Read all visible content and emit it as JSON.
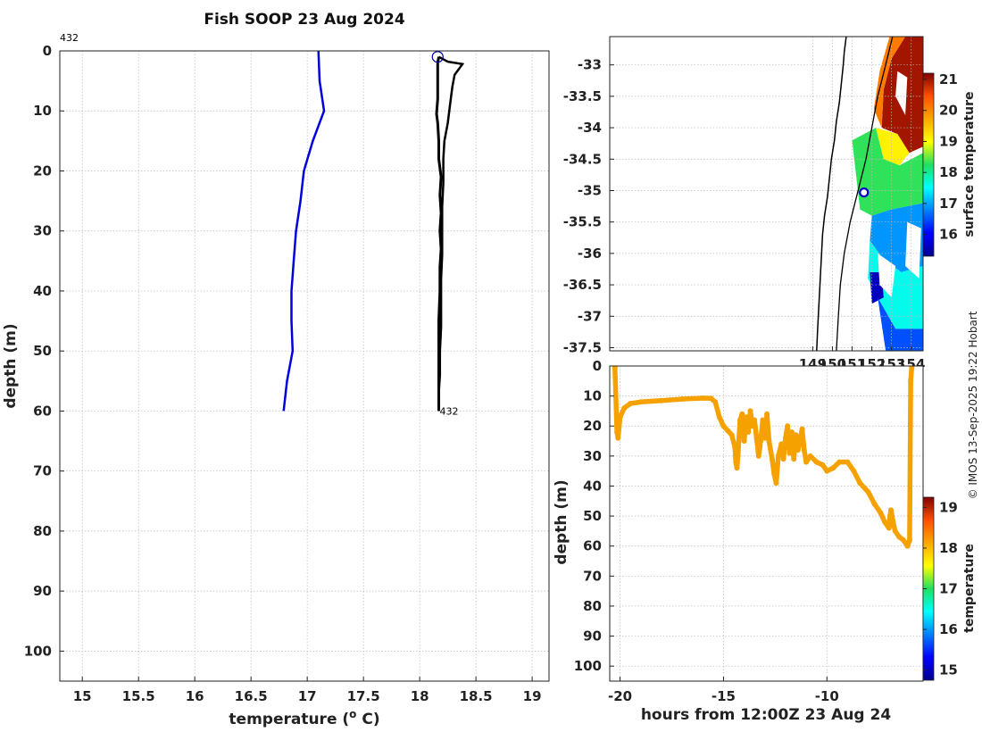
{
  "title": "Fish SOOP 23 Aug 2024",
  "credit": "© IMOS 13-Sep-2025 19:22 Hobart",
  "chart_data": [
    {
      "id": "profile",
      "type": "line",
      "xlabel": "temperature (o C)",
      "xlabel_main": "temperature (",
      "xlabel_sup": "o",
      "xlabel_end": " C)",
      "ylabel": "depth (m)",
      "xlim": [
        14.8,
        19.15
      ],
      "ylim": [
        105,
        0
      ],
      "xticks": [
        "15",
        "15.5",
        "16",
        "16.5",
        "17",
        "17.5",
        "18",
        "18.5",
        "19"
      ],
      "xtick_values": [
        15,
        15.5,
        16,
        16.5,
        17,
        17.5,
        18,
        18.5,
        19
      ],
      "yticks": [
        "0",
        "10",
        "20",
        "30",
        "40",
        "50",
        "60",
        "70",
        "80",
        "90",
        "100"
      ],
      "ytick_values": [
        0,
        10,
        20,
        30,
        40,
        50,
        60,
        70,
        80,
        90,
        100
      ],
      "annotation_top": "432",
      "annotation_bottom": "432",
      "series": [
        {
          "name": "climatology",
          "color": "#0000dd",
          "points": [
            [
              17.1,
              0
            ],
            [
              17.11,
              5
            ],
            [
              17.15,
              10
            ],
            [
              17.05,
              15
            ],
            [
              16.97,
              20
            ],
            [
              16.94,
              25
            ],
            [
              16.9,
              30
            ],
            [
              16.88,
              35
            ],
            [
              16.86,
              40
            ],
            [
              16.86,
              45
            ],
            [
              16.87,
              50
            ],
            [
              16.82,
              55
            ],
            [
              16.79,
              60
            ]
          ]
        },
        {
          "name": "downcast",
          "color": "#000000",
          "points": [
            [
              18.17,
              1
            ],
            [
              18.25,
              1.8
            ],
            [
              18.38,
              2.2
            ],
            [
              18.31,
              4
            ],
            [
              18.29,
              6
            ],
            [
              18.27,
              9
            ],
            [
              18.25,
              12
            ],
            [
              18.22,
              15
            ],
            [
              18.21,
              18
            ],
            [
              18.21,
              22
            ],
            [
              18.2,
              26
            ],
            [
              18.2,
              30
            ],
            [
              18.2,
              34
            ],
            [
              18.19,
              38
            ],
            [
              18.19,
              42
            ],
            [
              18.19,
              46
            ],
            [
              18.18,
              50
            ],
            [
              18.18,
              54
            ],
            [
              18.17,
              57
            ],
            [
              18.17,
              60
            ]
          ]
        },
        {
          "name": "upcast",
          "color": "#000000",
          "points": [
            [
              18.17,
              60
            ],
            [
              18.17,
              55
            ],
            [
              18.17,
              50
            ],
            [
              18.17,
              45
            ],
            [
              18.18,
              40
            ],
            [
              18.18,
              36
            ],
            [
              18.19,
              33
            ],
            [
              18.18,
              30
            ],
            [
              18.19,
              27
            ],
            [
              18.18,
              24
            ],
            [
              18.19,
              21
            ],
            [
              18.17,
              18
            ],
            [
              18.17,
              15
            ],
            [
              18.16,
              12
            ],
            [
              18.15,
              10.5
            ],
            [
              18.16,
              8
            ],
            [
              18.16,
              5
            ],
            [
              18.16,
              2
            ],
            [
              18.17,
              1
            ]
          ]
        }
      ],
      "marker": {
        "x": 18.16,
        "y": 1,
        "color": "#0000aa"
      }
    },
    {
      "id": "map",
      "type": "heatmap",
      "xlim": [
        138.7,
        154.6
      ],
      "ylim": [
        -37.55,
        -32.55
      ],
      "xticks": [
        "149",
        "150",
        "151",
        "152",
        "153",
        "154"
      ],
      "xtick_values": [
        149,
        150,
        151,
        152,
        153,
        154
      ],
      "yticks": [
        "-33",
        "-33.5",
        "-34",
        "-34.5",
        "-35",
        "-35.5",
        "-36",
        "-36.5",
        "-37",
        "-37.5"
      ],
      "ytick_values": [
        -33,
        -33.5,
        -34,
        -34.5,
        -35,
        -35.5,
        -36,
        -36.5,
        -37,
        -37.5
      ],
      "colorbar_label": "surface temperature",
      "colorbar_ticks": [
        "16",
        "17",
        "18",
        "19",
        "20",
        "21"
      ],
      "colorbar_tick_values": [
        16,
        17,
        18,
        19,
        20,
        21
      ],
      "colorbar_range": [
        15.3,
        21.2
      ],
      "station": {
        "lon": 151.6,
        "lat": -35.03
      },
      "coastline": [
        [
          150.7,
          -32.55
        ],
        [
          150.6,
          -32.8
        ],
        [
          150.55,
          -33.0
        ],
        [
          150.45,
          -33.3
        ],
        [
          150.35,
          -33.6
        ],
        [
          150.2,
          -33.9
        ],
        [
          150.1,
          -34.2
        ],
        [
          149.95,
          -34.5
        ],
        [
          149.85,
          -34.8
        ],
        [
          149.75,
          -35.1
        ],
        [
          149.6,
          -35.4
        ],
        [
          149.5,
          -35.7
        ],
        [
          149.45,
          -36.0
        ],
        [
          149.4,
          -36.3
        ],
        [
          149.35,
          -36.6
        ],
        [
          149.3,
          -36.9
        ],
        [
          149.25,
          -37.2
        ],
        [
          149.2,
          -37.55
        ]
      ],
      "isobath": [
        [
          153.05,
          -32.55
        ],
        [
          152.7,
          -33.0
        ],
        [
          152.3,
          -33.5
        ],
        [
          152.0,
          -34.0
        ],
        [
          151.7,
          -34.5
        ],
        [
          151.3,
          -35.0
        ],
        [
          150.9,
          -35.5
        ],
        [
          150.6,
          -36.0
        ],
        [
          150.4,
          -36.5
        ],
        [
          150.3,
          -37.0
        ],
        [
          150.2,
          -37.55
        ]
      ],
      "sst_regions": [
        {
          "temp": 21.0,
          "poly": [
            [
              153.7,
              -32.55
            ],
            [
              154.6,
              -32.55
            ],
            [
              154.6,
              -34.3
            ],
            [
              153.9,
              -34.4
            ],
            [
              153.3,
              -34.1
            ],
            [
              152.5,
              -34.0
            ],
            [
              152.6,
              -33.4
            ],
            [
              153.0,
              -32.9
            ]
          ]
        },
        {
          "temp": 20.1,
          "poly": [
            [
              152.9,
              -32.55
            ],
            [
              153.7,
              -32.55
            ],
            [
              153.0,
              -32.9
            ],
            [
              152.6,
              -33.4
            ],
            [
              152.5,
              -34.0
            ],
            [
              152.1,
              -33.7
            ],
            [
              152.4,
              -33.1
            ]
          ]
        },
        {
          "temp": 19.1,
          "poly": [
            [
              152.2,
              -34.0
            ],
            [
              153.3,
              -34.1
            ],
            [
              153.9,
              -34.4
            ],
            [
              153.4,
              -34.6
            ],
            [
              152.6,
              -34.5
            ]
          ]
        },
        {
          "temp": 18.3,
          "poly": [
            [
              151.0,
              -34.2
            ],
            [
              152.2,
              -34.0
            ],
            [
              152.6,
              -34.5
            ],
            [
              153.4,
              -34.6
            ],
            [
              154.6,
              -34.4
            ],
            [
              154.6,
              -35.2
            ],
            [
              153.0,
              -35.3
            ],
            [
              152.0,
              -35.4
            ],
            [
              151.4,
              -35.3
            ]
          ]
        },
        {
          "temp": 16.9,
          "poly": [
            [
              152.0,
              -35.4
            ],
            [
              153.0,
              -35.3
            ],
            [
              154.6,
              -35.2
            ],
            [
              154.6,
              -36.2
            ],
            [
              153.5,
              -36.3
            ],
            [
              152.6,
              -36.1
            ],
            [
              151.9,
              -35.8
            ]
          ]
        },
        {
          "temp": 17.6,
          "poly": [
            [
              151.9,
              -35.8
            ],
            [
              152.6,
              -36.1
            ],
            [
              153.5,
              -36.3
            ],
            [
              154.6,
              -36.2
            ],
            [
              154.6,
              -37.2
            ],
            [
              153.2,
              -37.2
            ],
            [
              152.3,
              -36.7
            ],
            [
              151.8,
              -36.4
            ]
          ]
        },
        {
          "temp": 15.6,
          "poly": [
            [
              151.9,
              -36.3
            ],
            [
              152.5,
              -36.3
            ],
            [
              152.6,
              -36.7
            ],
            [
              152.0,
              -36.8
            ]
          ]
        },
        {
          "temp": 16.5,
          "poly": [
            [
              152.3,
              -36.7
            ],
            [
              153.2,
              -37.2
            ],
            [
              154.6,
              -37.2
            ],
            [
              154.6,
              -37.55
            ],
            [
              152.7,
              -37.55
            ]
          ]
        }
      ],
      "gaps": [
        {
          "poly": [
            [
              153.3,
              -33.1
            ],
            [
              153.8,
              -33.2
            ],
            [
              153.7,
              -33.8
            ],
            [
              153.2,
              -33.5
            ]
          ]
        },
        {
          "poly": [
            [
              152.3,
              -36.0
            ],
            [
              153.2,
              -36.2
            ],
            [
              153.0,
              -36.7
            ],
            [
              152.4,
              -36.5
            ]
          ]
        },
        {
          "poly": [
            [
              153.8,
              -35.5
            ],
            [
              154.5,
              -35.6
            ],
            [
              154.4,
              -36.4
            ],
            [
              153.7,
              -36.2
            ]
          ]
        }
      ]
    },
    {
      "id": "depth-time",
      "type": "scatter",
      "xlabel": "hours from 12:00Z 23 Aug 24",
      "ylabel": "depth (m)",
      "xlim": [
        -20.5,
        -5.35
      ],
      "ylim": [
        105,
        0
      ],
      "xticks": [
        "-20",
        "-15",
        "-10"
      ],
      "xtick_values": [
        -20,
        -15,
        -10
      ],
      "yticks": [
        "0",
        "10",
        "20",
        "30",
        "40",
        "50",
        "60",
        "70",
        "80",
        "90",
        "100"
      ],
      "ytick_values": [
        0,
        10,
        20,
        30,
        40,
        50,
        60,
        70,
        80,
        90,
        100
      ],
      "colorbar_label": "temperature",
      "colorbar_ticks": [
        "15",
        "16",
        "17",
        "18",
        "19"
      ],
      "colorbar_tick_values": [
        15,
        16,
        17,
        18,
        19
      ],
      "colorbar_range": [
        14.75,
        19.25
      ],
      "point_color": "#f5a100",
      "track": [
        [
          -20.25,
          0.5
        ],
        [
          -20.15,
          22
        ],
        [
          -20.1,
          24
        ],
        [
          -20.0,
          17
        ],
        [
          -19.8,
          14
        ],
        [
          -19.5,
          12.5
        ],
        [
          -19.0,
          12
        ],
        [
          -18.0,
          11.5
        ],
        [
          -17.0,
          11
        ],
        [
          -16.0,
          10.7
        ],
        [
          -15.6,
          10.8
        ],
        [
          -15.4,
          12
        ],
        [
          -15.2,
          17
        ],
        [
          -15.0,
          20
        ],
        [
          -14.8,
          21.5
        ],
        [
          -14.6,
          23
        ],
        [
          -14.45,
          27
        ],
        [
          -14.4,
          32
        ],
        [
          -14.35,
          34
        ],
        [
          -14.3,
          30
        ],
        [
          -14.2,
          18
        ],
        [
          -14.1,
          16
        ],
        [
          -14.0,
          25
        ],
        [
          -13.9,
          17
        ],
        [
          -13.8,
          22
        ],
        [
          -13.7,
          15
        ],
        [
          -13.6,
          20
        ],
        [
          -13.5,
          18
        ],
        [
          -13.4,
          24
        ],
        [
          -13.3,
          30
        ],
        [
          -13.2,
          25
        ],
        [
          -13.1,
          18
        ],
        [
          -13.0,
          24
        ],
        [
          -12.9,
          16
        ],
        [
          -12.8,
          25
        ],
        [
          -12.65,
          31
        ],
        [
          -12.55,
          36
        ],
        [
          -12.45,
          39
        ],
        [
          -12.35,
          30
        ],
        [
          -12.2,
          26
        ],
        [
          -12.1,
          31
        ],
        [
          -12.0,
          24
        ],
        [
          -11.9,
          20
        ],
        [
          -11.8,
          29
        ],
        [
          -11.7,
          22
        ],
        [
          -11.6,
          31
        ],
        [
          -11.5,
          23
        ],
        [
          -11.4,
          28
        ],
        [
          -11.3,
          25
        ],
        [
          -11.2,
          21
        ],
        [
          -11.1,
          28
        ],
        [
          -11.0,
          32
        ],
        [
          -10.8,
          30
        ],
        [
          -10.5,
          32
        ],
        [
          -10.2,
          33
        ],
        [
          -10.0,
          35
        ],
        [
          -9.7,
          34
        ],
        [
          -9.4,
          32
        ],
        [
          -9.0,
          32
        ],
        [
          -8.7,
          35
        ],
        [
          -8.4,
          39
        ],
        [
          -8.0,
          42
        ],
        [
          -7.7,
          46
        ],
        [
          -7.4,
          49
        ],
        [
          -7.2,
          52
        ],
        [
          -7.0,
          54
        ],
        [
          -6.95,
          50
        ],
        [
          -6.9,
          48
        ],
        [
          -6.8,
          52
        ],
        [
          -6.7,
          55
        ],
        [
          -6.5,
          57
        ],
        [
          -6.3,
          58
        ],
        [
          -6.1,
          60
        ],
        [
          -6.0,
          58
        ],
        [
          -5.95,
          5
        ],
        [
          -5.9,
          0.5
        ]
      ]
    }
  ]
}
